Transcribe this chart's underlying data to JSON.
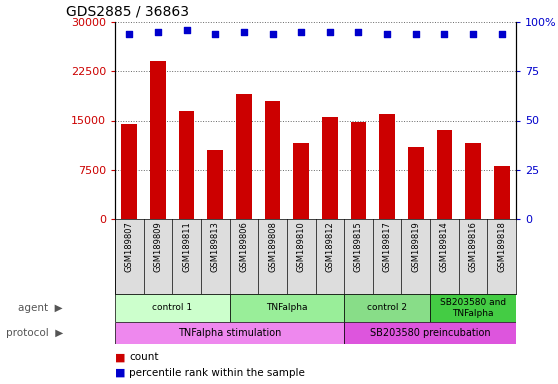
{
  "title": "GDS2885 / 36863",
  "samples": [
    "GSM189807",
    "GSM189809",
    "GSM189811",
    "GSM189813",
    "GSM189806",
    "GSM189808",
    "GSM189810",
    "GSM189812",
    "GSM189815",
    "GSM189817",
    "GSM189819",
    "GSM189814",
    "GSM189816",
    "GSM189818"
  ],
  "counts": [
    14500,
    24000,
    16500,
    10500,
    19000,
    18000,
    11500,
    15500,
    14800,
    16000,
    11000,
    13500,
    11500,
    8000
  ],
  "percentile_ranks": [
    94,
    95,
    96,
    94,
    95,
    94,
    95,
    95,
    95,
    94,
    94,
    94,
    94,
    94
  ],
  "ylim_left": [
    0,
    30000
  ],
  "ylim_right": [
    0,
    100
  ],
  "yticks_left": [
    0,
    7500,
    15000,
    22500,
    30000
  ],
  "yticks_right": [
    0,
    25,
    50,
    75,
    100
  ],
  "bar_color": "#cc0000",
  "dot_color": "#0000cc",
  "agent_groups": [
    {
      "label": "control 1",
      "start": 0,
      "end": 4,
      "color": "#ccffcc"
    },
    {
      "label": "TNFalpha",
      "start": 4,
      "end": 8,
      "color": "#99ee99"
    },
    {
      "label": "control 2",
      "start": 8,
      "end": 11,
      "color": "#88dd88"
    },
    {
      "label": "SB203580 and\nTNFalpha",
      "start": 11,
      "end": 14,
      "color": "#44cc44"
    }
  ],
  "protocol_groups": [
    {
      "label": "TNFalpha stimulation",
      "start": 0,
      "end": 8,
      "color": "#ee88ee"
    },
    {
      "label": "SB203580 preincubation",
      "start": 8,
      "end": 14,
      "color": "#dd55dd"
    }
  ],
  "legend_count_color": "#cc0000",
  "legend_dot_color": "#0000cc"
}
